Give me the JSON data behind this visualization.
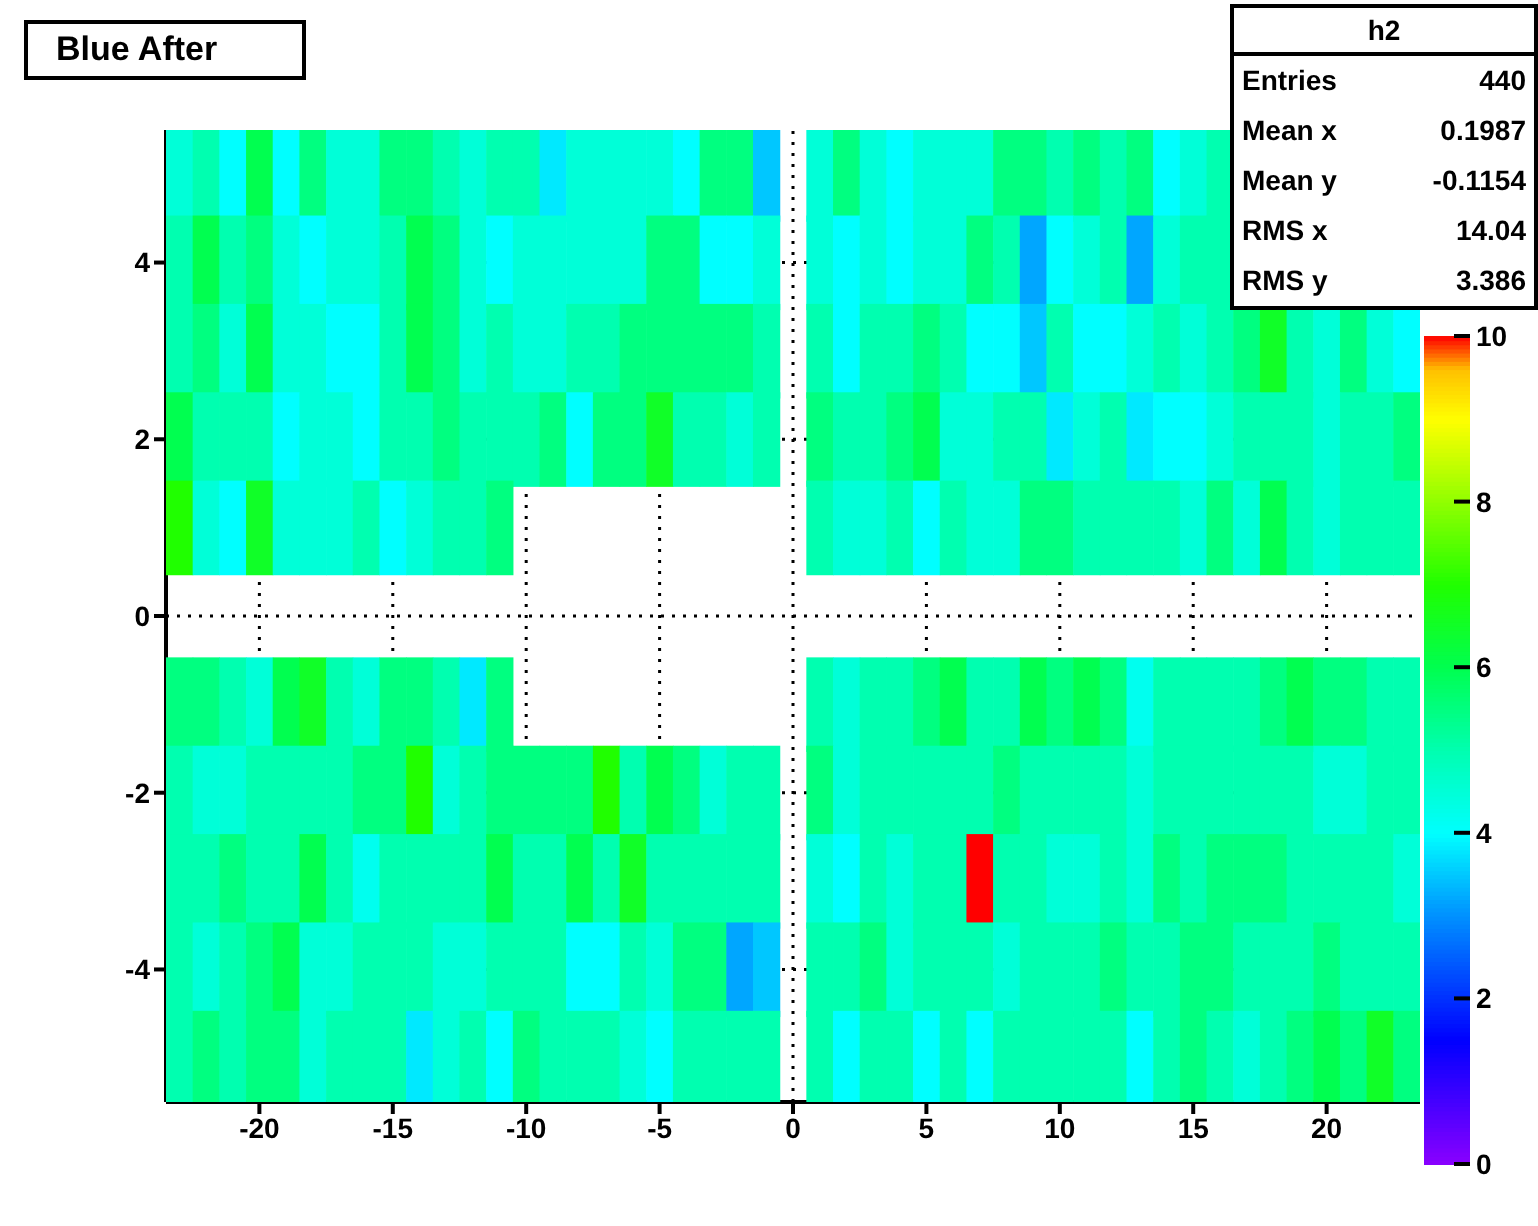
{
  "chart_data": {
    "type": "heatmap",
    "title": "Blue After",
    "annotations": [
      "h2",
      "Entries",
      "440",
      "Mean x",
      "0.1987",
      "Mean y",
      "-0.1154",
      "RMS x",
      "14.04",
      "RMS y",
      "3.386"
    ],
    "categories": [
      null,
      null,
      null,
      "-20",
      null,
      null,
      null,
      null,
      "-15",
      null,
      null,
      null,
      null,
      "-10",
      null,
      null,
      null,
      null,
      "-5",
      null,
      null,
      null,
      null,
      "0",
      null,
      null,
      null,
      null,
      "5",
      null,
      null,
      null,
      null,
      "10",
      null,
      null,
      null,
      null,
      "15",
      null,
      null,
      null,
      null,
      "20",
      null,
      null,
      null
    ],
    "y_categories": [
      null,
      "4",
      null,
      "2",
      null,
      "0",
      null,
      "-2",
      null,
      "-4",
      null
    ],
    "clim": [
      0,
      10
    ],
    "cticks": [
      0,
      2,
      4,
      6,
      8,
      10
    ],
    "grid": true,
    "cells": [
      [
        4.5,
        5,
        4,
        6,
        4,
        5.5,
        4.5,
        4.5,
        5.5,
        5.5,
        5,
        4.5,
        5,
        5,
        3.8,
        4.5,
        4.5,
        4.5,
        4.5,
        4,
        5.5,
        5.5,
        3.5,
        null,
        4.5,
        5.5,
        4.5,
        4,
        4.5,
        4.5,
        4.5,
        5.5,
        5.5,
        5,
        5.5,
        5,
        5.5,
        4,
        4.5,
        5,
        null,
        null,
        null,
        null,
        null,
        null,
        null
      ],
      [
        5,
        6,
        5,
        5.5,
        4.5,
        4,
        4.5,
        4.5,
        5,
        6,
        5.5,
        4.5,
        4,
        4.5,
        4.5,
        4.5,
        4.5,
        4.5,
        5.5,
        5.5,
        4,
        4,
        4.5,
        null,
        4.5,
        4,
        4.5,
        4,
        4.5,
        4.5,
        5.5,
        5,
        3.2,
        4,
        4.5,
        5,
        3.2,
        4.5,
        5,
        5,
        null,
        null,
        null,
        null,
        null,
        null,
        null
      ],
      [
        5,
        5.5,
        4.5,
        6,
        4.5,
        4.5,
        4,
        4,
        5,
        6,
        5.5,
        4.5,
        5,
        4.5,
        4.5,
        5,
        5,
        5.5,
        5.5,
        5.5,
        5.5,
        5.5,
        5,
        null,
        5,
        4,
        5,
        5,
        5.5,
        5,
        4,
        4,
        3.5,
        5,
        4,
        4,
        4.5,
        5,
        4.5,
        5,
        5.5,
        6.5,
        5,
        4.5,
        5.5,
        4.5,
        4
      ],
      [
        6,
        5,
        5,
        5,
        4,
        4.5,
        4.5,
        4,
        5,
        5,
        5.5,
        5,
        5,
        5,
        5.5,
        4,
        5.5,
        5.5,
        6.5,
        5,
        5,
        4.5,
        5,
        null,
        5.5,
        5,
        5,
        5.5,
        6,
        4.5,
        4.5,
        5,
        5,
        3.8,
        4.5,
        5,
        3.8,
        4,
        4,
        4.5,
        5,
        5,
        5,
        4.5,
        5,
        5,
        5.5
      ],
      [
        7,
        4.5,
        4,
        6.5,
        4.5,
        4.5,
        4.5,
        5,
        4,
        4.5,
        5,
        5,
        5.5,
        null,
        null,
        null,
        null,
        null,
        null,
        null,
        null,
        null,
        null,
        null,
        5,
        4.5,
        4.5,
        5,
        4,
        5,
        4.5,
        4.5,
        5.5,
        5.5,
        5,
        5,
        5,
        5,
        4.5,
        5.5,
        4.5,
        6,
        5,
        4.5,
        5,
        5,
        5
      ],
      [
        null,
        null,
        null,
        null,
        null,
        null,
        null,
        null,
        null,
        null,
        null,
        null,
        null,
        null,
        null,
        null,
        null,
        null,
        null,
        null,
        null,
        null,
        null,
        null,
        null,
        null,
        null,
        null,
        null,
        null,
        null,
        null,
        null,
        null,
        null,
        null,
        null,
        null,
        null,
        null,
        null,
        null,
        null,
        null,
        null,
        null,
        null
      ],
      [
        5.5,
        5.5,
        5,
        4.5,
        6,
        6.5,
        5,
        4.5,
        5.5,
        5.5,
        5,
        3.8,
        5.5,
        null,
        null,
        null,
        null,
        null,
        null,
        null,
        null,
        null,
        null,
        null,
        5,
        4.5,
        5,
        5,
        5.5,
        6,
        5,
        5,
        6,
        5.5,
        6,
        5.5,
        4.2,
        5,
        5,
        5,
        5,
        5.5,
        6,
        5.5,
        5.5,
        5,
        5
      ],
      [
        5,
        4.5,
        4.5,
        5,
        5,
        5,
        5,
        5.5,
        5.5,
        7,
        4.5,
        5,
        5.5,
        5.5,
        5.5,
        5.5,
        7,
        5,
        6,
        5.5,
        4.5,
        5,
        5,
        null,
        5.5,
        4.5,
        5,
        5,
        5,
        5,
        5,
        5.5,
        5,
        5,
        5,
        5,
        4.5,
        5,
        5,
        5,
        5,
        5,
        5,
        4.5,
        4.5,
        5,
        5
      ],
      [
        5,
        5,
        5.5,
        5,
        5,
        6,
        5,
        4.2,
        5,
        5,
        5,
        5,
        6,
        5,
        5,
        6,
        5,
        6.5,
        5,
        5,
        5,
        5,
        5,
        null,
        4.5,
        4,
        5,
        4.5,
        5,
        5,
        10,
        5,
        5,
        4.5,
        4.5,
        5,
        4.5,
        5.5,
        5,
        5.5,
        5.5,
        5.5,
        5,
        5,
        5,
        5,
        4.5
      ],
      [
        5,
        4.5,
        5,
        5.5,
        6,
        4.5,
        4.5,
        5,
        5,
        5,
        4.5,
        4.5,
        5,
        5,
        5,
        4,
        4,
        5,
        4.5,
        5.5,
        5.5,
        3.2,
        3.5,
        null,
        5,
        5,
        5.5,
        4.5,
        5,
        5,
        5,
        4.5,
        5,
        5,
        5,
        5.5,
        5,
        5,
        5.5,
        5.5,
        5,
        5,
        5,
        5.5,
        5,
        5,
        5
      ],
      [
        5,
        5.5,
        5,
        5.5,
        5.5,
        4.5,
        5,
        5,
        5,
        3.8,
        4.5,
        5,
        4,
        5.5,
        5,
        5,
        5,
        4.5,
        4,
        5,
        5,
        5,
        5,
        null,
        5,
        4,
        5,
        5,
        4,
        5,
        4,
        5,
        5,
        5,
        5,
        5,
        4,
        5,
        5.5,
        5,
        4.5,
        5,
        5.5,
        6,
        5.5,
        6.5,
        5.5
      ]
    ]
  }
}
